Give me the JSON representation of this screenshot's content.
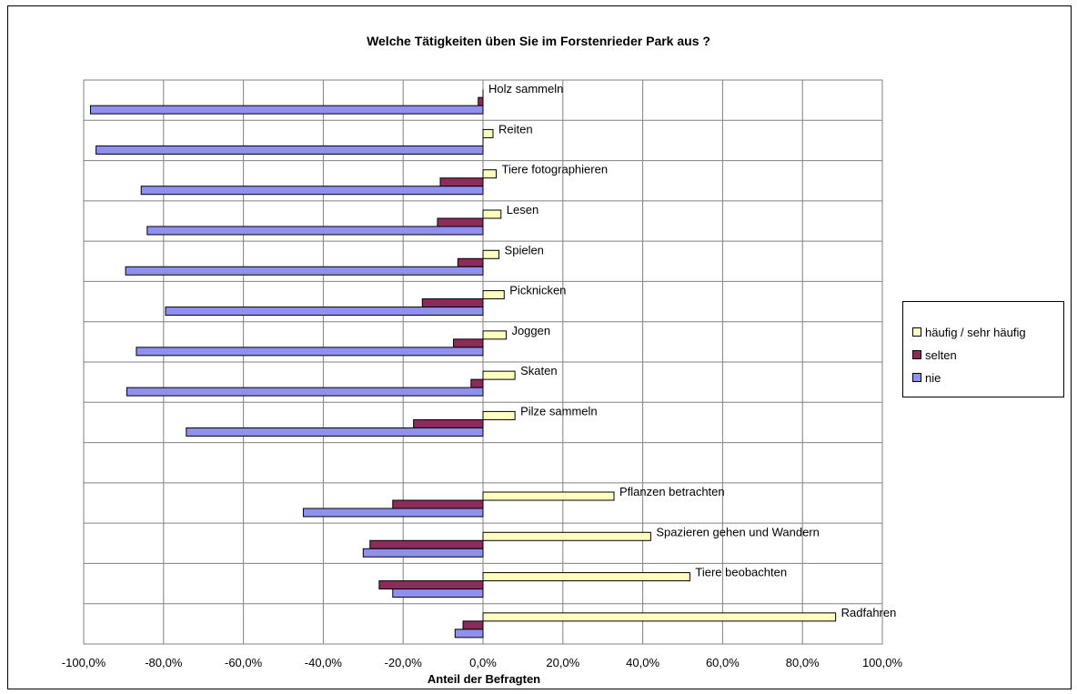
{
  "chart_data": {
    "type": "bar",
    "orientation": "horizontal",
    "title": "Welche Tätigkeiten üben Sie im Forstenrieder Park aus ?",
    "xlabel": "Anteil der Befragten",
    "ylabel": "",
    "xlim": [
      -100,
      100
    ],
    "xticks": [
      "-100,0%",
      "-80,0%",
      "-60,0%",
      "-40,0%",
      "-20,0%",
      "0,0%",
      "20,0%",
      "40,0%",
      "60,0%",
      "80,0%",
      "100,0%"
    ],
    "grid": true,
    "legend_position": "right",
    "categories": [
      "Holz sammeln",
      "Reiten",
      "Tiere fotographieren",
      "Lesen",
      "Spielen",
      "Picknicken",
      "Joggen",
      "Skaten",
      "Pilze sammeln",
      "",
      "Pflanzen betrachten",
      "Spazieren gehen und Wandern",
      "Tiere beobachten",
      "Radfahren"
    ],
    "series": [
      {
        "name": "häufig / sehr häufig",
        "color": "#ffffc0",
        "values": [
          0,
          2.5,
          3.3,
          4.5,
          4,
          5.3,
          5.8,
          8,
          8,
          null,
          32.8,
          42,
          51.8,
          88.3
        ]
      },
      {
        "name": "selten",
        "color": "#8b2c5a",
        "values": [
          -1.2,
          0,
          -10.7,
          -11.4,
          -6.3,
          -15.2,
          -7.4,
          -3,
          -17.4,
          null,
          -22.6,
          -28.3,
          -26,
          -5
        ]
      },
      {
        "name": "nie",
        "color": "#9090ee",
        "values": [
          -98.3,
          -96.9,
          -85.6,
          -84.1,
          -89.5,
          -79.5,
          -86.8,
          -89.2,
          -74.3,
          null,
          -45,
          -30,
          -22.6,
          -7
        ]
      }
    ]
  }
}
